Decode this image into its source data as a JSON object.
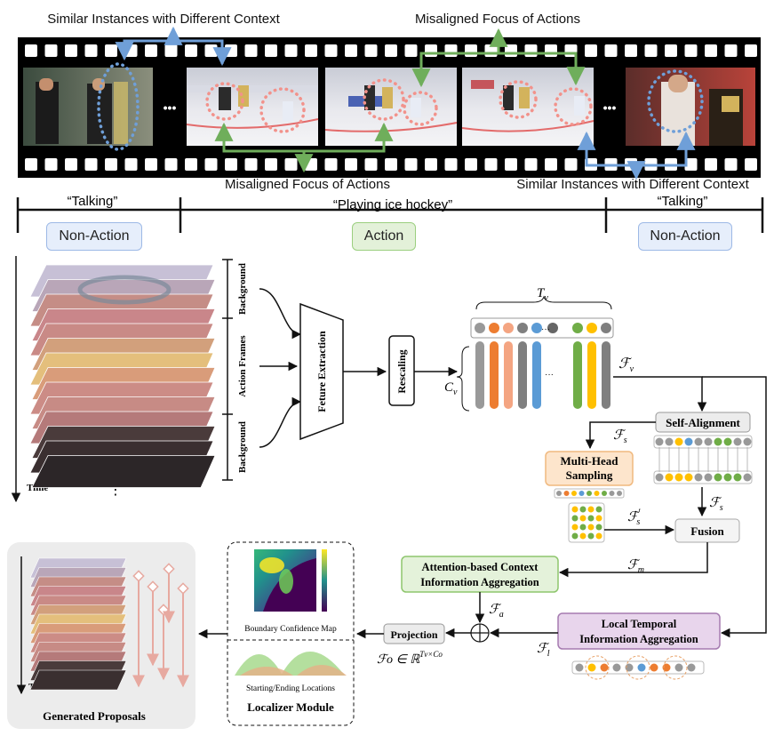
{
  "filmstrip": {
    "top_left_label": "Similar Instances with Different Context",
    "top_right_label": "Misaligned Focus of Actions",
    "bottom_left_label": "Misaligned Focus of Actions",
    "bottom_right_label": "Similar Instances with Different Context",
    "ellipsis": "•••"
  },
  "timeline": {
    "segments": [
      {
        "quote": "“Talking”",
        "tag": "Non-Action"
      },
      {
        "quote": "“Playing ice hockey”",
        "tag": "Action"
      },
      {
        "quote": "“Talking”",
        "tag": "Non-Action"
      }
    ]
  },
  "pipeline": {
    "time_label": "Time",
    "ellipsis_vertical": "⋮",
    "bracket_labels": [
      "Background",
      "Action Frames",
      "Background"
    ],
    "feature_extraction": "Feture Extraction",
    "rescaling": "Rescaling",
    "tv": "T",
    "tv_sub": "v",
    "cv": "C",
    "cv_sub": "v",
    "fv": "ℱ",
    "fv_sub": "v",
    "fs": "ℱ",
    "fs_sub": "s",
    "fs_prime_sub": "s",
    "fm_sub": "m",
    "fa_sub": "a",
    "fl_sub": "l",
    "self_alignment": "Self-Alignment",
    "multi_head_sampling": "Multi-Head Sampling",
    "fusion": "Fusion",
    "attention_aggregation": "Attention-based Context Information Aggregation",
    "local_temporal": "Local Temporal Information Aggregation",
    "projection": "Projection",
    "fo_formula": "ℱo ∈ ℝ",
    "fo_sup": "Tv×Co",
    "boundary_map": "Boundary Confidence Map",
    "start_end": "Starting/Ending Locations",
    "localizer": "Localizer Module",
    "generated": "Generated Proposals"
  },
  "colors": {
    "blue_arrow": "#6f9fd8",
    "green_arrow": "#6fae5b",
    "nonaction_fill": "#e6eefb",
    "nonaction_border": "#9db9e6",
    "action_fill": "#e3f1d9",
    "action_border": "#9bcf7f",
    "self_align_fill": "#ececec",
    "mhs_fill": "#fde5cc",
    "mhs_border": "#f0b97f",
    "attn_fill": "#e4f2da",
    "attn_border": "#8ec66d",
    "local_fill": "#e8d5ec",
    "local_border": "#a57bb0",
    "proposal": "#e7a9a0"
  }
}
